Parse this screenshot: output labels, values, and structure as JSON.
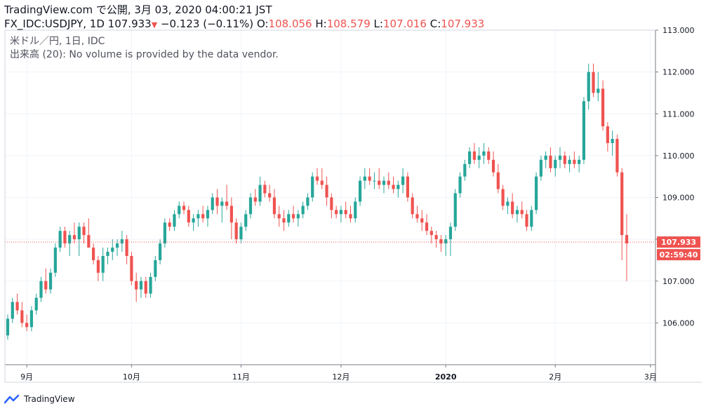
{
  "header": {
    "title": "TradingView.com で公開, 3月 03, 2020 04:00:21 JST",
    "symbol": "FX_IDC:USDJPY, 1D",
    "last": "107.933",
    "change": "−0.123 (−0.11%)",
    "o_label": "O:",
    "o_value": "108.056",
    "h_label": "H:",
    "h_value": "108.579",
    "l_label": "L:",
    "l_value": "107.016",
    "c_label": "C:",
    "c_value": "107.933"
  },
  "legend": {
    "name": "米ドル／円, 1日, IDC",
    "volume": "出来高 (20): No volume is provided by the data vendor."
  },
  "footer": {
    "brand": "TradingView"
  },
  "colors": {
    "up": "#26a69a",
    "down": "#ef5350",
    "grid": "#f0f3fa",
    "axis": "#787b86",
    "price_line": "#ef5350"
  },
  "chart_data": {
    "type": "candlestick",
    "y_axis_side": "right",
    "ylim": [
      105.0,
      113.0
    ],
    "y_ticks": [
      "106.000",
      "107.000",
      "108.000",
      "109.000",
      "110.000",
      "111.000",
      "112.000",
      "113.000"
    ],
    "x_ticks": [
      {
        "label": "9月",
        "index": 4
      },
      {
        "label": "10月",
        "index": 26
      },
      {
        "label": "11月",
        "index": 49
      },
      {
        "label": "12月",
        "index": 70
      },
      {
        "label": "2020",
        "index": 92,
        "bold": true
      },
      {
        "label": "2月",
        "index": 115
      },
      {
        "label": "3月",
        "index": 135
      }
    ],
    "last_price_label": "107.933",
    "countdown_label": "02:59:40",
    "last_price": 107.933,
    "candles": [
      [
        105.7,
        106.2,
        105.6,
        106.1
      ],
      [
        106.1,
        106.6,
        106.0,
        106.5
      ],
      [
        106.5,
        106.7,
        106.2,
        106.3
      ],
      [
        106.3,
        106.5,
        105.9,
        106.0
      ],
      [
        106.0,
        106.2,
        105.8,
        105.9
      ],
      [
        105.9,
        106.4,
        105.8,
        106.3
      ],
      [
        106.3,
        106.7,
        106.2,
        106.6
      ],
      [
        106.6,
        107.1,
        106.5,
        107.0
      ],
      [
        107.0,
        107.3,
        106.7,
        106.8
      ],
      [
        106.8,
        107.3,
        106.7,
        107.2
      ],
      [
        107.2,
        107.9,
        107.1,
        107.8
      ],
      [
        107.8,
        108.3,
        107.7,
        108.2
      ],
      [
        108.2,
        108.3,
        107.8,
        107.9
      ],
      [
        107.9,
        108.2,
        107.6,
        108.1
      ],
      [
        108.1,
        108.4,
        107.9,
        108.0
      ],
      [
        108.0,
        108.4,
        107.6,
        108.3
      ],
      [
        108.3,
        108.4,
        107.9,
        108.1
      ],
      [
        108.1,
        108.5,
        107.8,
        107.8
      ],
      [
        107.8,
        107.9,
        107.4,
        107.5
      ],
      [
        107.5,
        107.6,
        107.0,
        107.2
      ],
      [
        107.2,
        107.8,
        107.0,
        107.6
      ],
      [
        107.6,
        107.8,
        107.4,
        107.7
      ],
      [
        107.7,
        108.0,
        107.5,
        107.8
      ],
      [
        107.8,
        108.0,
        107.6,
        107.9
      ],
      [
        107.9,
        108.2,
        107.7,
        108.0
      ],
      [
        108.0,
        108.1,
        107.4,
        107.6
      ],
      [
        107.6,
        107.7,
        106.9,
        107.0
      ],
      [
        107.0,
        107.2,
        106.5,
        106.8
      ],
      [
        106.8,
        107.1,
        106.6,
        107.0
      ],
      [
        107.0,
        107.1,
        106.6,
        106.7
      ],
      [
        106.7,
        107.2,
        106.6,
        107.1
      ],
      [
        107.1,
        107.6,
        107.0,
        107.5
      ],
      [
        107.5,
        108.0,
        107.4,
        107.9
      ],
      [
        107.9,
        108.5,
        107.8,
        108.4
      ],
      [
        108.4,
        108.5,
        108.2,
        108.3
      ],
      [
        108.3,
        108.7,
        108.2,
        108.6
      ],
      [
        108.6,
        108.9,
        108.5,
        108.8
      ],
      [
        108.8,
        108.9,
        108.6,
        108.7
      ],
      [
        108.7,
        108.8,
        108.3,
        108.4
      ],
      [
        108.4,
        108.6,
        108.2,
        108.5
      ],
      [
        108.5,
        108.7,
        108.3,
        108.6
      ],
      [
        108.6,
        108.8,
        108.4,
        108.5
      ],
      [
        108.5,
        108.8,
        108.3,
        108.7
      ],
      [
        108.7,
        109.1,
        108.6,
        109.0
      ],
      [
        109.0,
        109.2,
        108.6,
        108.8
      ],
      [
        108.8,
        109.0,
        108.4,
        108.9
      ],
      [
        108.9,
        109.3,
        108.7,
        108.8
      ],
      [
        108.8,
        109.0,
        108.0,
        108.4
      ],
      [
        108.4,
        108.5,
        107.9,
        108.0
      ],
      [
        108.0,
        108.4,
        107.9,
        108.3
      ],
      [
        108.3,
        108.7,
        108.2,
        108.6
      ],
      [
        108.6,
        109.1,
        108.5,
        109.0
      ],
      [
        109.0,
        109.2,
        108.8,
        108.9
      ],
      [
        108.9,
        109.5,
        108.8,
        109.3
      ],
      [
        109.3,
        109.4,
        109.0,
        109.1
      ],
      [
        109.1,
        109.3,
        108.9,
        109.0
      ],
      [
        109.0,
        109.2,
        108.5,
        108.6
      ],
      [
        108.6,
        108.8,
        108.3,
        108.5
      ],
      [
        108.5,
        108.7,
        108.2,
        108.4
      ],
      [
        108.4,
        108.7,
        108.3,
        108.6
      ],
      [
        108.6,
        108.8,
        108.4,
        108.5
      ],
      [
        108.5,
        108.7,
        108.3,
        108.6
      ],
      [
        108.6,
        108.9,
        108.5,
        108.8
      ],
      [
        108.8,
        109.1,
        108.7,
        109.0
      ],
      [
        109.0,
        109.6,
        108.9,
        109.5
      ],
      [
        109.5,
        109.7,
        109.3,
        109.4
      ],
      [
        109.4,
        109.7,
        109.2,
        109.3
      ],
      [
        109.3,
        109.5,
        108.8,
        109.0
      ],
      [
        109.0,
        109.1,
        108.5,
        108.7
      ],
      [
        108.7,
        108.8,
        108.5,
        108.6
      ],
      [
        108.6,
        108.8,
        108.4,
        108.7
      ],
      [
        108.7,
        108.9,
        108.5,
        108.6
      ],
      [
        108.6,
        108.8,
        108.4,
        108.5
      ],
      [
        108.5,
        109.0,
        108.4,
        108.9
      ],
      [
        108.9,
        109.5,
        108.8,
        109.4
      ],
      [
        109.4,
        109.7,
        109.2,
        109.5
      ],
      [
        109.5,
        109.7,
        109.3,
        109.4
      ],
      [
        109.4,
        109.6,
        109.2,
        109.4
      ],
      [
        109.4,
        109.7,
        109.2,
        109.3
      ],
      [
        109.3,
        109.5,
        109.1,
        109.4
      ],
      [
        109.4,
        109.6,
        109.2,
        109.3
      ],
      [
        109.3,
        109.5,
        109.1,
        109.2
      ],
      [
        109.2,
        109.4,
        109.0,
        109.3
      ],
      [
        109.3,
        109.7,
        109.1,
        109.5
      ],
      [
        109.5,
        109.6,
        108.9,
        109.0
      ],
      [
        109.0,
        109.1,
        108.5,
        108.6
      ],
      [
        108.6,
        108.8,
        108.4,
        108.5
      ],
      [
        108.5,
        108.7,
        108.2,
        108.4
      ],
      [
        108.4,
        108.6,
        108.1,
        108.2
      ],
      [
        108.2,
        108.3,
        107.9,
        108.1
      ],
      [
        108.1,
        108.2,
        107.8,
        108.0
      ],
      [
        108.0,
        108.1,
        107.7,
        107.9
      ],
      [
        107.9,
        108.1,
        107.6,
        108.0
      ],
      [
        108.0,
        108.4,
        107.6,
        108.3
      ],
      [
        108.3,
        109.2,
        108.2,
        109.1
      ],
      [
        109.1,
        109.6,
        109.0,
        109.5
      ],
      [
        109.5,
        109.9,
        109.4,
        109.8
      ],
      [
        109.8,
        110.2,
        109.7,
        110.1
      ],
      [
        110.1,
        110.3,
        109.8,
        109.9
      ],
      [
        109.9,
        110.2,
        109.7,
        110.0
      ],
      [
        110.0,
        110.3,
        109.8,
        110.1
      ],
      [
        110.1,
        110.2,
        109.8,
        109.9
      ],
      [
        109.9,
        110.1,
        109.5,
        109.6
      ],
      [
        109.6,
        109.8,
        109.1,
        109.2
      ],
      [
        109.2,
        109.3,
        108.7,
        108.8
      ],
      [
        108.8,
        109.0,
        108.6,
        108.9
      ],
      [
        108.9,
        109.1,
        108.5,
        108.6
      ],
      [
        108.6,
        108.8,
        108.4,
        108.7
      ],
      [
        108.7,
        108.9,
        108.5,
        108.6
      ],
      [
        108.6,
        108.7,
        108.2,
        108.3
      ],
      [
        108.3,
        108.8,
        108.2,
        108.7
      ],
      [
        108.7,
        109.6,
        108.6,
        109.5
      ],
      [
        109.5,
        110.0,
        109.4,
        109.9
      ],
      [
        109.9,
        110.1,
        109.7,
        110.0
      ],
      [
        110.0,
        110.2,
        109.6,
        109.7
      ],
      [
        109.7,
        110.0,
        109.5,
        109.9
      ],
      [
        109.9,
        110.2,
        109.7,
        110.0
      ],
      [
        110.0,
        110.1,
        109.7,
        109.8
      ],
      [
        109.8,
        110.0,
        109.6,
        109.9
      ],
      [
        109.9,
        110.1,
        109.7,
        109.8
      ],
      [
        109.8,
        110.0,
        109.6,
        109.9
      ],
      [
        109.9,
        111.4,
        109.8,
        111.3
      ],
      [
        111.3,
        112.2,
        111.1,
        112.0
      ],
      [
        112.0,
        112.2,
        111.4,
        111.5
      ],
      [
        111.5,
        112.0,
        111.3,
        111.6
      ],
      [
        111.6,
        111.8,
        110.6,
        110.7
      ],
      [
        110.7,
        110.8,
        110.1,
        110.3
      ],
      [
        110.3,
        110.6,
        110.0,
        110.4
      ],
      [
        110.4,
        110.5,
        109.5,
        109.6
      ],
      [
        109.6,
        109.7,
        107.5,
        108.1
      ],
      [
        108.1,
        108.6,
        107.0,
        107.9
      ]
    ]
  }
}
